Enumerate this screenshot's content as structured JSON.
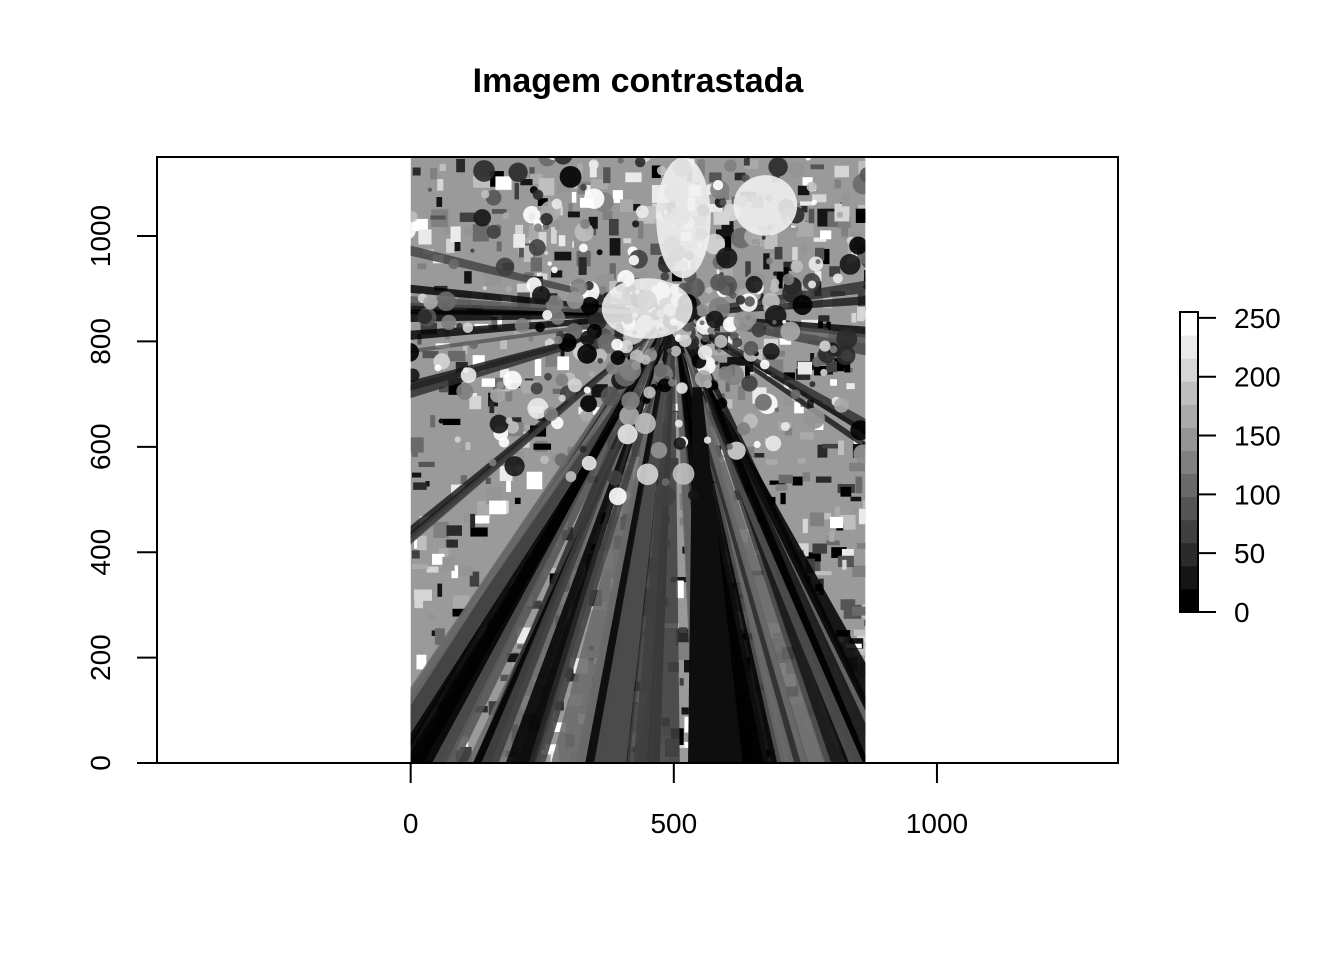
{
  "chart_data": {
    "type": "heatmap",
    "title": "Imagem contrastada",
    "xlabel": "",
    "ylabel": "",
    "xlim": [
      -482,
      1344
    ],
    "ylim": [
      0,
      1150
    ],
    "x_ticks": [
      0,
      500,
      1000
    ],
    "y_ticks": [
      0,
      200,
      400,
      600,
      800,
      1000
    ],
    "image_extent": {
      "x": [
        0,
        864
      ],
      "y": [
        0,
        1150
      ]
    },
    "image_content": "grayscale photograph of tall trees viewed from below toward the canopy",
    "colorbar": {
      "ticks": [
        0,
        50,
        100,
        150,
        200,
        250
      ],
      "range": [
        0,
        255
      ],
      "levels": 13,
      "palette": "grayscale",
      "placement": "right"
    },
    "grid": false,
    "legend": "colorbar-right"
  }
}
